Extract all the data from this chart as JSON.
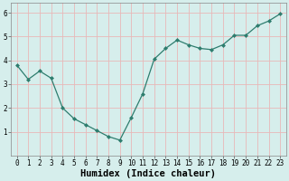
{
  "x": [
    0,
    1,
    2,
    3,
    4,
    5,
    6,
    7,
    8,
    9,
    10,
    11,
    12,
    13,
    14,
    15,
    16,
    17,
    18,
    19,
    20,
    21,
    22,
    23
  ],
  "y": [
    3.8,
    3.2,
    3.55,
    3.25,
    2.0,
    1.55,
    1.3,
    1.05,
    0.8,
    0.65,
    1.6,
    2.6,
    4.05,
    4.5,
    4.85,
    4.65,
    4.5,
    4.45,
    4.65,
    5.05,
    5.05,
    5.45,
    5.65,
    5.95
  ],
  "line_color": "#2e7d6e",
  "marker": "D",
  "marker_size": 2,
  "xlabel": "Humidex (Indice chaleur)",
  "ylim": [
    0,
    6.4
  ],
  "xlim": [
    -0.5,
    23.5
  ],
  "yticks": [
    1,
    2,
    3,
    4,
    5,
    6
  ],
  "xticks": [
    0,
    1,
    2,
    3,
    4,
    5,
    6,
    7,
    8,
    9,
    10,
    11,
    12,
    13,
    14,
    15,
    16,
    17,
    18,
    19,
    20,
    21,
    22,
    23
  ],
  "bg_color": "#d6eeec",
  "grid_color": "#e8b8b8",
  "axis_bg": "#d6eeec",
  "xlabel_fontsize": 7.5,
  "tick_fontsize": 5.5,
  "fig_width": 3.2,
  "fig_height": 2.0,
  "dpi": 100
}
